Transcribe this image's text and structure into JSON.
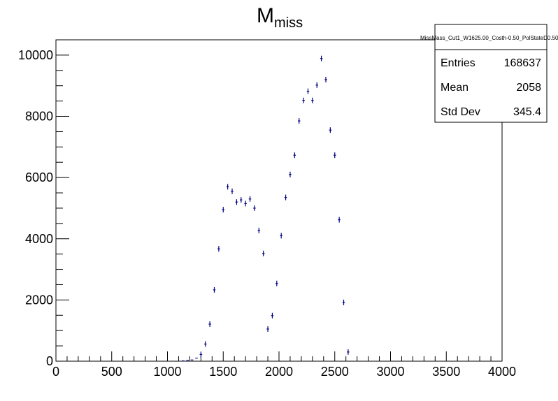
{
  "chart_data": {
    "type": "scatter",
    "title_main": "M",
    "title_sub": "miss",
    "xlabel": "",
    "ylabel": "",
    "xlim": [
      0,
      4000
    ],
    "ylim": [
      0,
      10500
    ],
    "x_ticks": [
      0,
      500,
      1000,
      1500,
      2000,
      2500,
      3000,
      3500,
      4000
    ],
    "y_ticks": [
      0,
      2000,
      4000,
      6000,
      8000,
      10000
    ],
    "grid": false,
    "marker_color": "#000080",
    "bin_width": 40,
    "points": [
      {
        "x": 1140,
        "y": 10
      },
      {
        "x": 1180,
        "y": 20
      },
      {
        "x": 1220,
        "y": 40
      },
      {
        "x": 1260,
        "y": 100
      },
      {
        "x": 1300,
        "y": 220
      },
      {
        "x": 1340,
        "y": 560
      },
      {
        "x": 1380,
        "y": 1210
      },
      {
        "x": 1420,
        "y": 2330
      },
      {
        "x": 1460,
        "y": 3670
      },
      {
        "x": 1500,
        "y": 4950
      },
      {
        "x": 1540,
        "y": 5700
      },
      {
        "x": 1580,
        "y": 5550
      },
      {
        "x": 1620,
        "y": 5200
      },
      {
        "x": 1660,
        "y": 5270
      },
      {
        "x": 1700,
        "y": 5150
      },
      {
        "x": 1740,
        "y": 5300
      },
      {
        "x": 1780,
        "y": 5000
      },
      {
        "x": 1820,
        "y": 4270
      },
      {
        "x": 1860,
        "y": 3520
      },
      {
        "x": 1900,
        "y": 1050
      },
      {
        "x": 1940,
        "y": 1490
      },
      {
        "x": 1980,
        "y": 2540
      },
      {
        "x": 2020,
        "y": 4100
      },
      {
        "x": 2060,
        "y": 5350
      },
      {
        "x": 2100,
        "y": 6100
      },
      {
        "x": 2140,
        "y": 6730
      },
      {
        "x": 2180,
        "y": 7850
      },
      {
        "x": 2220,
        "y": 8520
      },
      {
        "x": 2260,
        "y": 8820
      },
      {
        "x": 2300,
        "y": 8520
      },
      {
        "x": 2340,
        "y": 9020
      },
      {
        "x": 2380,
        "y": 9890
      },
      {
        "x": 2420,
        "y": 9200
      },
      {
        "x": 2460,
        "y": 7550
      },
      {
        "x": 2500,
        "y": 6730
      },
      {
        "x": 2540,
        "y": 4620
      },
      {
        "x": 2580,
        "y": 1920
      },
      {
        "x": 2620,
        "y": 300
      }
    ]
  },
  "stats_box": {
    "name": "MissMass_Cut1_W1625.00_Costh-0.50_PolStateD0.50_",
    "entries_label": "Entries",
    "entries_value": "168637",
    "mean_label": "Mean",
    "mean_value": "2058",
    "stddev_label": "Std Dev",
    "stddev_value": "345.4"
  }
}
